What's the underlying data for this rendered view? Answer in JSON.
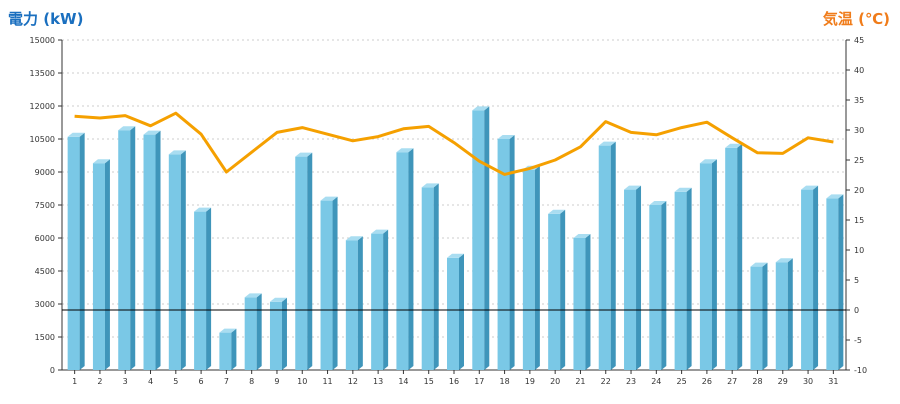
{
  "chart_data": {
    "type": "bar",
    "ylabel_left": "電力 (kW)",
    "ylabel_right": "気温 (℃)",
    "x": [
      1,
      2,
      3,
      4,
      5,
      6,
      7,
      8,
      9,
      10,
      11,
      12,
      13,
      14,
      15,
      16,
      17,
      18,
      19,
      20,
      21,
      22,
      23,
      24,
      25,
      26,
      27,
      28,
      29,
      30,
      31
    ],
    "ylim_left": [
      0,
      15000
    ],
    "yticks_left": [
      0,
      1500,
      3000,
      4500,
      6000,
      7500,
      9000,
      10500,
      12000,
      13500,
      15000
    ],
    "ylim_right": [
      -10,
      45
    ],
    "yticks_right": [
      -10,
      -5,
      0,
      5,
      10,
      15,
      20,
      25,
      30,
      35,
      40,
      45
    ],
    "grid": true,
    "series": [
      {
        "kind": "bar",
        "axis": "left",
        "values": [
          10600,
          9400,
          10900,
          10700,
          9800,
          7200,
          1700,
          3300,
          3100,
          9700,
          7700,
          5900,
          6200,
          9900,
          8300,
          5100,
          11800,
          10500,
          9100,
          7100,
          6000,
          10200,
          8200,
          7500,
          8100,
          9400,
          10100,
          4700,
          4900,
          8200,
          7800
        ]
      },
      {
        "kind": "line",
        "axis": "right",
        "values": [
          32.3,
          32.0,
          32.4,
          30.7,
          32.8,
          29.3,
          23.0,
          26.3,
          29.6,
          30.4,
          29.3,
          28.2,
          28.9,
          30.2,
          30.6,
          27.9,
          24.8,
          22.6,
          23.6,
          25.0,
          27.2,
          31.4,
          29.6,
          29.2,
          30.4,
          31.3,
          28.7,
          26.2,
          26.1,
          28.7,
          28.0
        ]
      }
    ],
    "colors": {
      "bar_front": "#7ac8e6",
      "bar_side": "#3f95ba",
      "bar_top": "#a9ddf1",
      "line": "#f5a000",
      "zero_line": "#000000",
      "axis": "#333333",
      "grid": "#bfbfbf"
    }
  }
}
